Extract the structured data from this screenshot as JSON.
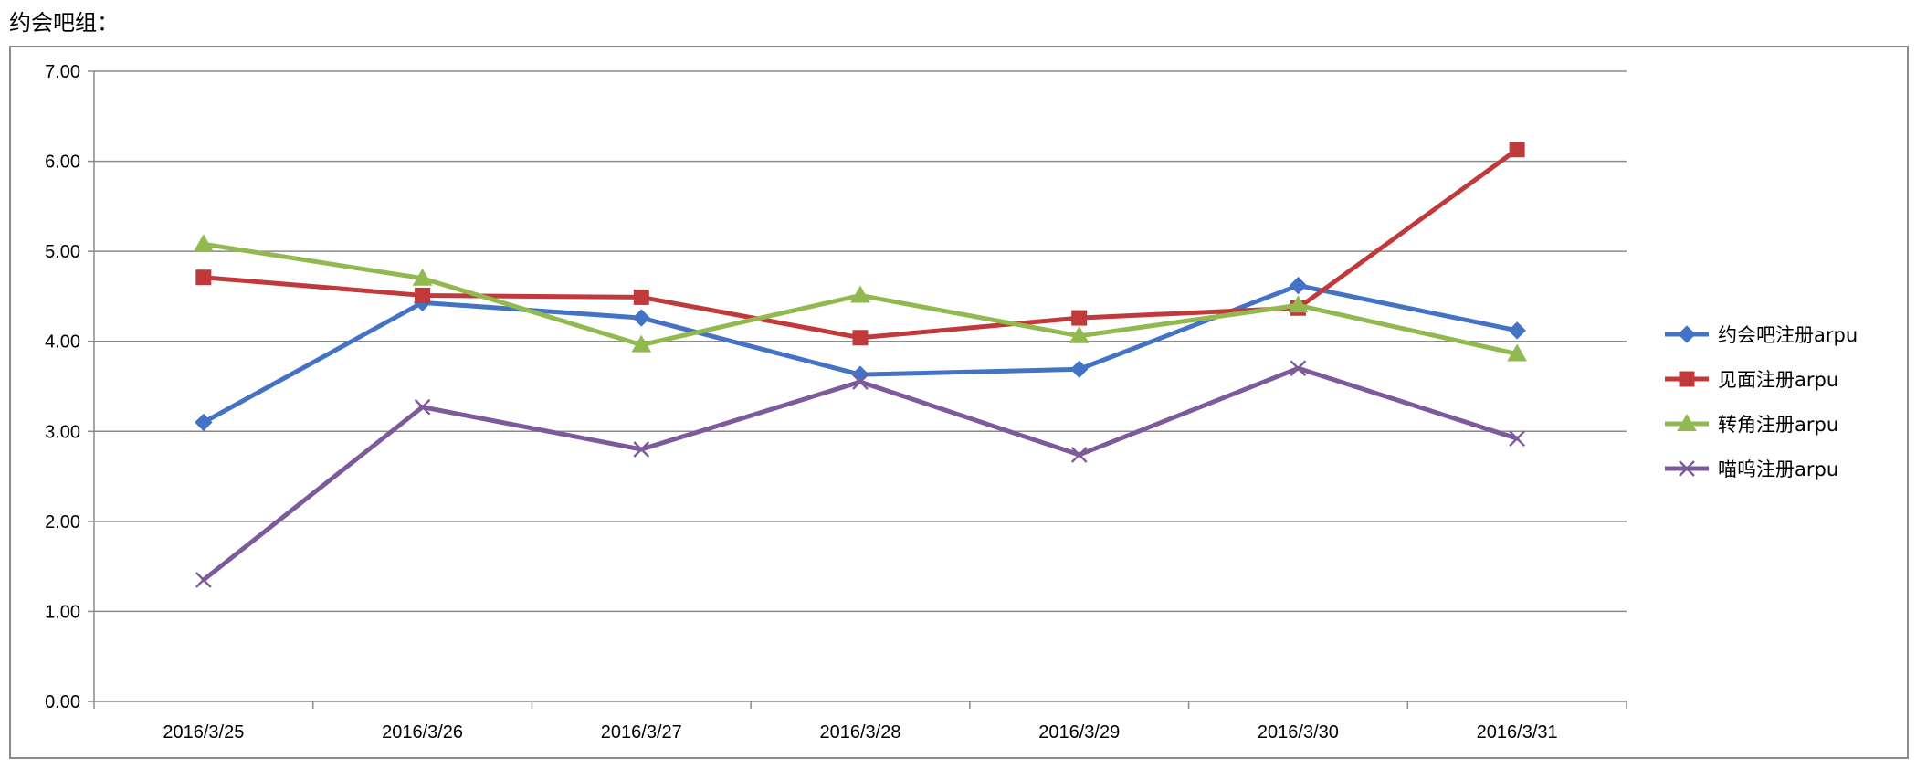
{
  "page": {
    "heading": "约会吧组："
  },
  "chart_data": {
    "type": "line",
    "categories": [
      "2016/3/25",
      "2016/3/26",
      "2016/3/27",
      "2016/3/28",
      "2016/3/29",
      "2016/3/30",
      "2016/3/31"
    ],
    "ylim": [
      0,
      7
    ],
    "yticks": [
      "0.00",
      "1.00",
      "2.00",
      "3.00",
      "4.00",
      "5.00",
      "6.00",
      "7.00"
    ],
    "grid": true,
    "legend_position": "right",
    "series": [
      {
        "name": "约会吧注册arpu",
        "marker": "diamond",
        "color": "#4472C4",
        "values": [
          3.1,
          4.43,
          4.26,
          3.63,
          3.69,
          4.62,
          4.12
        ]
      },
      {
        "name": "见面注册arpu",
        "marker": "square",
        "color": "#C0393B",
        "values": [
          4.71,
          4.51,
          4.49,
          4.04,
          4.26,
          4.37,
          6.13
        ]
      },
      {
        "name": "转角注册arpu",
        "marker": "triangle",
        "color": "#92B850",
        "values": [
          5.08,
          4.7,
          3.96,
          4.51,
          4.06,
          4.4,
          3.86
        ]
      },
      {
        "name": "喵呜注册arpu",
        "marker": "cross",
        "color": "#7D5A9B",
        "values": [
          1.35,
          3.27,
          2.8,
          3.55,
          2.74,
          3.7,
          2.92
        ]
      }
    ]
  }
}
